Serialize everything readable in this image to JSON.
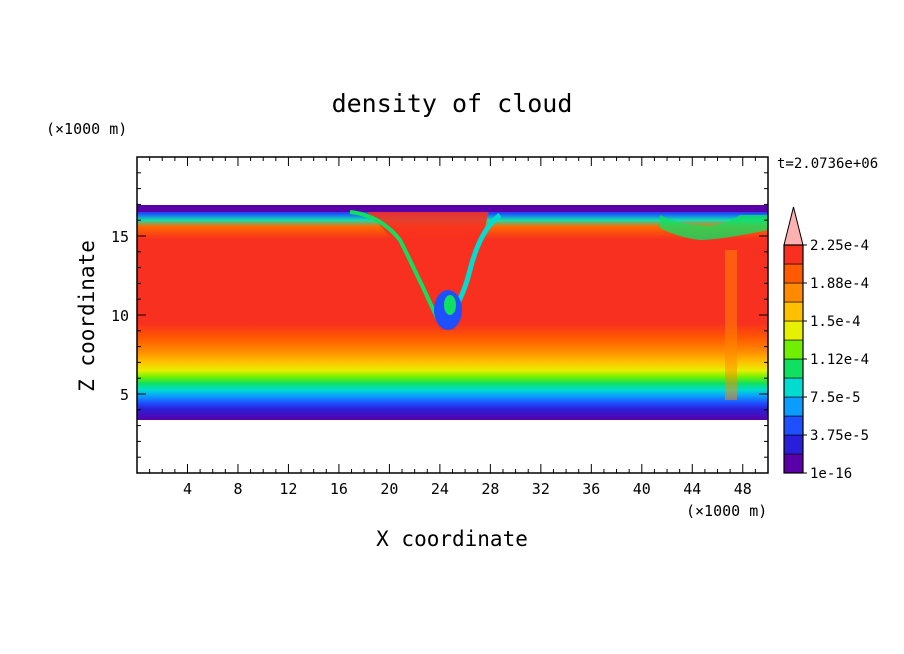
{
  "chart_data": {
    "type": "heatmap",
    "title": "density of cloud",
    "xlabel": "X coordinate",
    "ylabel": "Z coordinate",
    "x_unit": "(×1000 m)",
    "y_unit": "(×1000 m)",
    "time_label": "t=2.0736e+06",
    "xlim": [
      0,
      50
    ],
    "ylim": [
      0,
      20
    ],
    "x_ticks": [
      4,
      8,
      12,
      16,
      20,
      24,
      28,
      32,
      36,
      40,
      44,
      48
    ],
    "y_ticks": [
      5,
      10,
      15
    ],
    "colorbar": {
      "labels": [
        "1e-16",
        "3.75e-5",
        "7.5e-5",
        "1.12e-4",
        "1.5e-4",
        "1.88e-4",
        "2.25e-4"
      ],
      "colors": [
        "#5a00a8",
        "#2a1fd8",
        "#1e50ff",
        "#0a9cff",
        "#00dcd0",
        "#10e060",
        "#70f000",
        "#e6f000",
        "#ffc000",
        "#ff8a00",
        "#ff5a00",
        "#f83020",
        "#ffb0b0"
      ],
      "extend": "max"
    }
  }
}
